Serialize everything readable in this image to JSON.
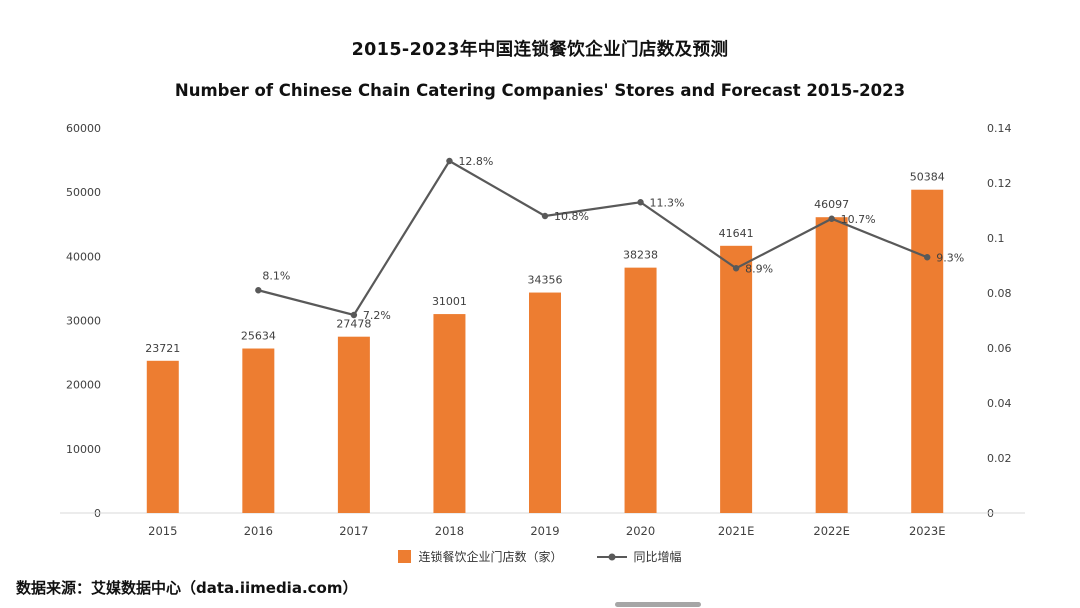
{
  "header": {
    "title": "2015-2023年中国连锁餐饮企业门店数及预测",
    "subtitle": "Number of Chinese Chain Catering Companies' Stores and Forecast 2015-2023"
  },
  "chart_data": {
    "type": "bar",
    "subtype": "combo-bar-line",
    "categories": [
      "2015",
      "2016",
      "2017",
      "2018",
      "2019",
      "2020",
      "2021E",
      "2022E",
      "2023E"
    ],
    "series": [
      {
        "name": "连锁餐饮企业门店数（家）",
        "type": "bar",
        "axis": "left",
        "color": "#ED7D31",
        "values": [
          23721,
          25634,
          27478,
          31001,
          34356,
          38238,
          41641,
          46097,
          50384
        ]
      },
      {
        "name": "同比增幅",
        "type": "line",
        "axis": "right",
        "color": "#595959",
        "values": [
          null,
          0.081,
          0.072,
          0.128,
          0.108,
          0.113,
          0.089,
          0.107,
          0.093
        ],
        "point_labels": [
          null,
          "8.1%",
          "7.2%",
          "12.8%",
          "10.8%",
          "11.3%",
          "8.9%",
          "10.7%",
          "9.3%"
        ]
      }
    ],
    "left_axis": {
      "min": 0,
      "max": 60000,
      "step": 10000,
      "ticks": [
        "0",
        "10000",
        "20000",
        "30000",
        "40000",
        "50000",
        "60000"
      ]
    },
    "right_axis": {
      "min": 0,
      "max": 0.14,
      "step": 0.02,
      "ticks": [
        "0",
        "0.02",
        "0.04",
        "0.06",
        "0.08",
        "0.1",
        "0.12",
        "0.14"
      ]
    },
    "grid": false,
    "legend_position": "bottom",
    "title": "2015-2023年中国连锁餐饮企业门店数及预测",
    "subtitle": "Number of Chinese Chain Catering Companies' Stores and Forecast 2015-2023"
  },
  "footer": {
    "source": "数据来源：艾媒数据中心（data.iimedia.com）"
  }
}
